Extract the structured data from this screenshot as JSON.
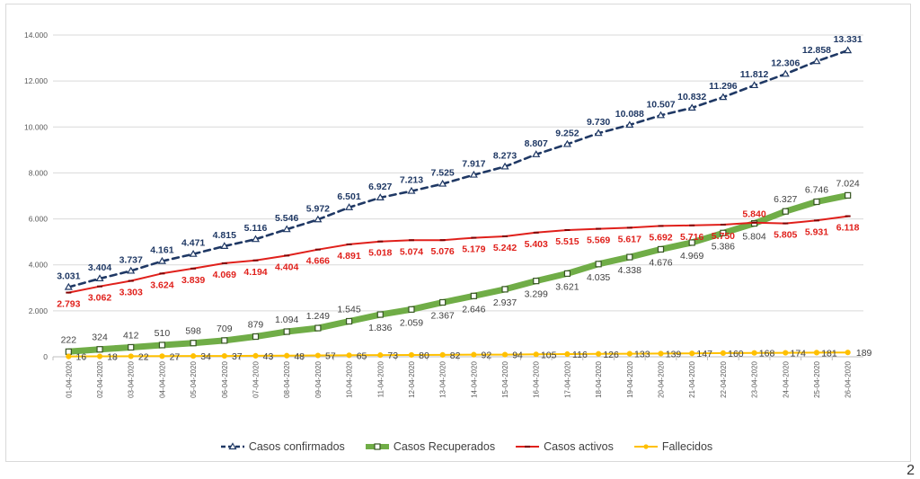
{
  "page_number": "2",
  "chart_data": {
    "type": "line",
    "categories": [
      "01-04-2020",
      "02-04-2020",
      "03-04-2020",
      "04-04-2020",
      "05-04-2020",
      "06-04-2020",
      "07-04-2020",
      "08-04-2020",
      "09-04-2020",
      "10-04-2020",
      "11-04-2020",
      "12-04-2020",
      "13-04-2020",
      "14-04-2020",
      "15-04-2020",
      "16-04-2020",
      "17-04-2020",
      "18-04-2020",
      "19-04-2020",
      "20-04-2020",
      "21-04-2020",
      "22-04-2020",
      "23-04-2020",
      "24-04-2020",
      "25-04-2020",
      "26-04-2020"
    ],
    "ylim": [
      0,
      14000
    ],
    "yticks": [
      0,
      2000,
      4000,
      6000,
      8000,
      10000,
      12000,
      14000
    ],
    "ytick_labels": [
      "0",
      "2.000",
      "4.000",
      "6.000",
      "8.000",
      "10.000",
      "12.000",
      "14.000"
    ],
    "grid": true,
    "legend_position": "bottom",
    "series": [
      {
        "name": "Casos confirmados",
        "color": "#1f3864",
        "style": "dashed",
        "marker": "triangle",
        "values": [
          3031,
          3404,
          3737,
          4161,
          4471,
          4815,
          5116,
          5546,
          5972,
          6501,
          6927,
          7213,
          7525,
          7917,
          8273,
          8807,
          9252,
          9730,
          10088,
          10507,
          10832,
          11296,
          11812,
          12306,
          12858,
          13331
        ],
        "labels": [
          "3.031",
          "3.404",
          "3.737",
          "4.161",
          "4.471",
          "4.815",
          "5.116",
          "5.546",
          "5.972",
          "6.501",
          "6.927",
          "7.213",
          "7.525",
          "7.917",
          "8.273",
          "8.807",
          "9.252",
          "9.730",
          "10.088",
          "10.507",
          "10.832",
          "11.296",
          "11.812",
          "12.306",
          "12.858",
          "13.331"
        ]
      },
      {
        "name": "Casos Recuperados",
        "color": "#70ad47",
        "style": "thick",
        "marker": "square",
        "values": [
          222,
          324,
          412,
          510,
          598,
          709,
          879,
          1094,
          1249,
          1545,
          1836,
          2059,
          2367,
          2646,
          2937,
          3299,
          3621,
          4035,
          4338,
          4676,
          4969,
          5386,
          5804,
          6327,
          6746,
          7024
        ],
        "labels": [
          "222",
          "324",
          "412",
          "510",
          "598",
          "709",
          "879",
          "1.094",
          "1.249",
          "1.545",
          "1.836",
          "2.059",
          "2.367",
          "2.646",
          "2.937",
          "3.299",
          "3.621",
          "4.035",
          "4.338",
          "4.676",
          "4.969",
          "5.386",
          "5.804",
          "6.327",
          "6.746",
          "7.024"
        ]
      },
      {
        "name": "Casos activos",
        "color": "#e0201b",
        "style": "solid",
        "marker": "dash",
        "values": [
          2793,
          3062,
          3303,
          3624,
          3839,
          4069,
          4194,
          4404,
          4666,
          4891,
          5018,
          5074,
          5076,
          5179,
          5242,
          5403,
          5515,
          5569,
          5617,
          5692,
          5716,
          5750,
          5840,
          5805,
          5931,
          6118
        ],
        "labels": [
          "2.793",
          "3.062",
          "3.303",
          "3.624",
          "3.839",
          "4.069",
          "4.194",
          "4.404",
          "4.666",
          "4.891",
          "5.018",
          "5.074",
          "5.076",
          "5.179",
          "5.242",
          "5.403",
          "5.515",
          "5.569",
          "5.617",
          "5.692",
          "5.716",
          "5.750",
          "5.840",
          "5.805",
          "5.931",
          "6.118"
        ]
      },
      {
        "name": "Fallecidos",
        "color": "#ffc000",
        "style": "solid",
        "marker": "circle",
        "values": [
          16,
          18,
          22,
          27,
          34,
          37,
          43,
          48,
          57,
          65,
          73,
          80,
          82,
          92,
          94,
          105,
          116,
          126,
          133,
          139,
          147,
          160,
          168,
          174,
          181,
          189
        ],
        "labels": [
          "16",
          "18",
          "22",
          "27",
          "34",
          "37",
          "43",
          "48",
          "57",
          "65",
          "73",
          "80",
          "82",
          "92",
          "94",
          "105",
          "116",
          "126",
          "133",
          "139",
          "147",
          "160",
          "168",
          "174",
          "181",
          "189"
        ]
      }
    ]
  }
}
